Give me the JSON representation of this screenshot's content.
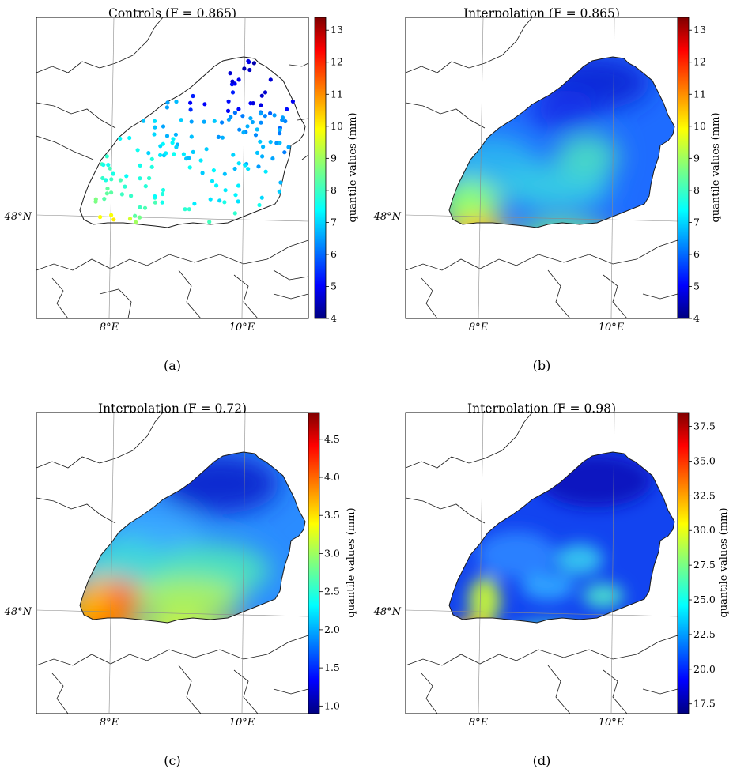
{
  "figure": {
    "panels": [
      {
        "id": "a",
        "title": "Controls (F = 0.865)",
        "caption": "(a)",
        "kind": "points",
        "colorbar": {
          "label": "quantile values (mm)",
          "min": 4,
          "max": 13.4,
          "ticks": [
            "4",
            "5",
            "6",
            "7",
            "8",
            "9",
            "10",
            "11",
            "12",
            "13"
          ],
          "tick_values": [
            4,
            5,
            6,
            7,
            8,
            9,
            10,
            11,
            12,
            13
          ]
        }
      },
      {
        "id": "b",
        "title": "Interpolation (F = 0.865)",
        "caption": "(b)",
        "kind": "field",
        "colorbar": {
          "label": "quantile values (mm)",
          "min": 4,
          "max": 13.4,
          "ticks": [
            "4",
            "5",
            "6",
            "7",
            "8",
            "9",
            "10",
            "11",
            "12",
            "13"
          ],
          "tick_values": [
            4,
            5,
            6,
            7,
            8,
            9,
            10,
            11,
            12,
            13
          ]
        }
      },
      {
        "id": "c",
        "title": "Interpolation (F = 0.72)",
        "caption": "(c)",
        "kind": "field",
        "colorbar": {
          "label": "quantile values (mm)",
          "min": 0.9,
          "max": 4.85,
          "ticks": [
            "1.0",
            "1.5",
            "2.0",
            "2.5",
            "3.0",
            "3.5",
            "4.0",
            "4.5"
          ],
          "tick_values": [
            1.0,
            1.5,
            2.0,
            2.5,
            3.0,
            3.5,
            4.0,
            4.5
          ]
        }
      },
      {
        "id": "d",
        "title": "Interpolation (F = 0.98)",
        "caption": "(d)",
        "kind": "field",
        "colorbar": {
          "label": "quantile values (mm)",
          "min": 16.8,
          "max": 38.5,
          "ticks": [
            "17.5",
            "20.0",
            "22.5",
            "25.0",
            "27.5",
            "30.0",
            "32.5",
            "35.0",
            "37.5"
          ],
          "tick_values": [
            17.5,
            20.0,
            22.5,
            25.0,
            27.5,
            30.0,
            32.5,
            35.0,
            37.5
          ]
        }
      }
    ],
    "axes": {
      "lat_label": "48°N",
      "lon_labels": [
        "8°E",
        "10°E"
      ]
    },
    "colormap": "jet",
    "colors": {
      "jet": [
        "#00007f",
        "#0000ff",
        "#007fff",
        "#00ffff",
        "#7fff7f",
        "#ffff00",
        "#ff7f00",
        "#ff0000",
        "#7f0000"
      ],
      "border": "#1a1a1a",
      "graticule": "#8a8a8a"
    }
  }
}
